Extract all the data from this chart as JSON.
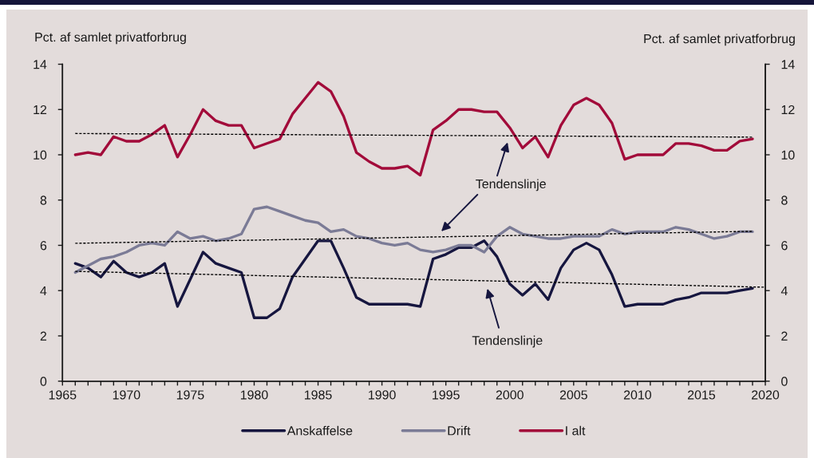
{
  "chart_data": {
    "type": "line",
    "ylabel": "Pct. af samlet privatforbrug",
    "y2label": "Pct. af samlet privatforbrug",
    "x": [
      1966,
      1967,
      1968,
      1969,
      1970,
      1971,
      1972,
      1973,
      1974,
      1975,
      1976,
      1977,
      1978,
      1979,
      1980,
      1981,
      1982,
      1983,
      1984,
      1985,
      1986,
      1987,
      1988,
      1989,
      1990,
      1991,
      1992,
      1993,
      1994,
      1995,
      1996,
      1997,
      1998,
      1999,
      2000,
      2001,
      2002,
      2003,
      2004,
      2005,
      2006,
      2007,
      2008,
      2009,
      2010,
      2011,
      2012,
      2013,
      2014,
      2015,
      2016,
      2017,
      2018,
      2019
    ],
    "series": [
      {
        "name": "Anskaffelse",
        "color": "#16163f",
        "values": [
          5.2,
          5.0,
          4.6,
          5.3,
          4.8,
          4.6,
          4.8,
          5.2,
          3.3,
          4.5,
          5.7,
          5.2,
          5.0,
          4.8,
          2.8,
          2.8,
          3.2,
          4.6,
          5.4,
          6.2,
          6.2,
          5.0,
          3.7,
          3.4,
          3.4,
          3.4,
          3.4,
          3.3,
          5.4,
          5.6,
          5.9,
          5.9,
          6.2,
          5.5,
          4.3,
          3.8,
          4.3,
          3.6,
          5.0,
          5.8,
          6.1,
          5.8,
          4.7,
          3.3,
          3.4,
          3.4,
          3.4,
          3.6,
          3.7,
          3.9,
          3.9,
          3.9,
          4.0,
          4.1
        ]
      },
      {
        "name": "Drift",
        "color": "#7b7b96",
        "values": [
          4.8,
          5.1,
          5.4,
          5.5,
          5.7,
          6.0,
          6.1,
          6.0,
          6.6,
          6.3,
          6.4,
          6.2,
          6.3,
          6.5,
          7.6,
          7.7,
          7.5,
          7.3,
          7.1,
          7.0,
          6.6,
          6.7,
          6.4,
          6.3,
          6.1,
          6.0,
          6.1,
          5.8,
          5.7,
          5.8,
          6.0,
          6.0,
          5.7,
          6.4,
          6.8,
          6.5,
          6.4,
          6.3,
          6.3,
          6.4,
          6.4,
          6.4,
          6.7,
          6.5,
          6.6,
          6.6,
          6.6,
          6.8,
          6.7,
          6.5,
          6.3,
          6.4,
          6.6,
          6.6
        ]
      },
      {
        "name": "I alt",
        "color": "#a20b3a",
        "values": [
          10.0,
          10.1,
          10.0,
          10.8,
          10.6,
          10.6,
          10.9,
          11.3,
          9.9,
          10.9,
          12.0,
          11.5,
          11.3,
          11.3,
          10.3,
          10.5,
          10.7,
          11.8,
          12.5,
          13.2,
          12.8,
          11.7,
          10.1,
          9.7,
          9.4,
          9.4,
          9.5,
          9.1,
          11.1,
          11.5,
          12.0,
          12.0,
          11.9,
          11.9,
          11.2,
          10.3,
          10.8,
          9.9,
          11.3,
          12.2,
          12.5,
          12.2,
          11.4,
          9.8,
          10.0,
          10.0,
          10.0,
          10.5,
          10.5,
          10.4,
          10.2,
          10.2,
          10.6,
          10.7
        ]
      },
      {
        "type": "line",
        "x": [
          1966,
          2019
        ],
        "values": [
          10.94,
          10.78
        ],
        "color": "#000000",
        "line_style": "dotted"
      },
      {
        "type": "line",
        "x": [
          1966,
          2019
        ],
        "values": [
          6.09,
          6.62
        ],
        "color": "#000000",
        "line_style": "dotted"
      },
      {
        "type": "line",
        "x": [
          1966,
          2020
        ],
        "values": [
          4.85,
          4.15
        ],
        "color": "#000000",
        "line_style": "dotted"
      }
    ],
    "xlim": [
      1965,
      2020
    ],
    "xticks": [
      1965,
      {
        "value": 1966,
        "label": null
      },
      {
        "value": 1967,
        "label": null
      },
      {
        "value": 1968,
        "label": null
      },
      {
        "value": 1969,
        "label": null
      },
      1970,
      {
        "value": 1971,
        "label": null
      },
      {
        "value": 1972,
        "label": null
      },
      {
        "value": 1973,
        "label": null
      },
      {
        "value": 1974,
        "label": null
      },
      1975,
      {
        "value": 1976,
        "label": null
      },
      {
        "value": 1977,
        "label": null
      },
      {
        "value": 1978,
        "label": null
      },
      {
        "value": 1979,
        "label": null
      },
      1980,
      {
        "value": 1981,
        "label": null
      },
      {
        "value": 1982,
        "label": null
      },
      {
        "value": 1983,
        "label": null
      },
      {
        "value": 1984,
        "label": null
      },
      1985,
      {
        "value": 1986,
        "label": null
      },
      {
        "value": 1987,
        "label": null
      },
      {
        "value": 1988,
        "label": null
      },
      {
        "value": 1989,
        "label": null
      },
      1990,
      {
        "value": 1991,
        "label": null
      },
      {
        "value": 1992,
        "label": null
      },
      {
        "value": 1993,
        "label": null
      },
      {
        "value": 1994,
        "label": null
      },
      1995,
      {
        "value": 1996,
        "label": null
      },
      {
        "value": 1997,
        "label": null
      },
      {
        "value": 1998,
        "label": null
      },
      {
        "value": 1999,
        "label": null
      },
      2000,
      {
        "value": 2001,
        "label": null
      },
      {
        "value": 2002,
        "label": null
      },
      {
        "value": 2003,
        "label": null
      },
      {
        "value": 2004,
        "label": null
      },
      2005,
      {
        "value": 2006,
        "label": null
      },
      {
        "value": 2007,
        "label": null
      },
      {
        "value": 2008,
        "label": null
      },
      {
        "value": 2009,
        "label": null
      },
      2010,
      {
        "value": 2011,
        "label": null
      },
      {
        "value": 2012,
        "label": null
      },
      {
        "value": 2013,
        "label": null
      },
      {
        "value": 2014,
        "label": null
      },
      2015,
      {
        "value": 2016,
        "label": null
      },
      {
        "value": 2017,
        "label": null
      },
      {
        "value": 2018,
        "label": null
      },
      {
        "value": 2019,
        "label": null
      },
      2020
    ],
    "ylim": [
      0,
      14
    ],
    "yticks": [
      0,
      2,
      4,
      6,
      8,
      10,
      12,
      14
    ],
    "y2lim": [
      0,
      14
    ],
    "y2ticks": [
      0,
      2,
      4,
      6,
      8,
      10,
      12,
      14
    ],
    "annotations": [
      "Tendenslinje",
      "Tendenslinje"
    ],
    "legend": "bottom",
    "line_style": "solid"
  }
}
